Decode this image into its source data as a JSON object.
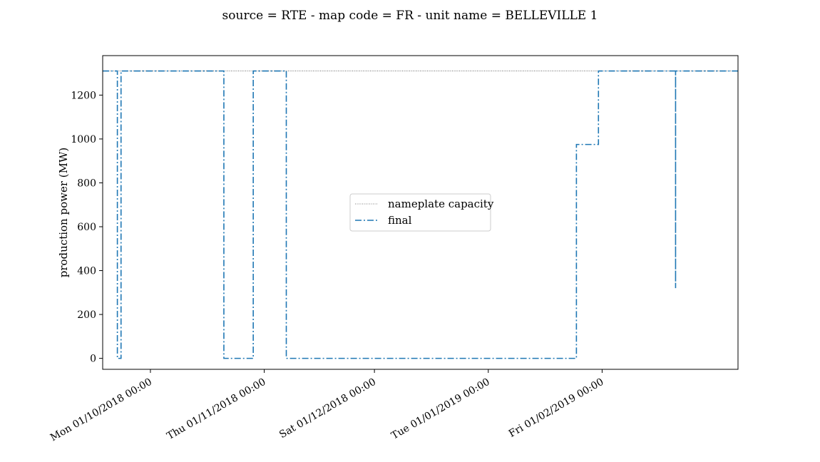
{
  "chart_data": {
    "type": "line",
    "title": "source = RTE - map code = FR - unit name = BELLEVILLE 1",
    "xlabel": "",
    "ylabel": "production power (MW)",
    "xlim": [
      "2018-09-18",
      "2019-03-10"
    ],
    "ylim": [
      -50,
      1380
    ],
    "x_ticks": [
      {
        "date": "2018-10-01",
        "label": "Mon 01/10/2018 00:00"
      },
      {
        "date": "2018-11-01",
        "label": "Thu 01/11/2018 00:00"
      },
      {
        "date": "2018-12-01",
        "label": "Sat 01/12/2018 00:00"
      },
      {
        "date": "2019-01-01",
        "label": "Tue 01/01/2019 00:00"
      },
      {
        "date": "2019-02-01",
        "label": "Fri 01/02/2019 00:00"
      }
    ],
    "y_ticks": [
      0,
      200,
      400,
      600,
      800,
      1000,
      1200
    ],
    "grid": false,
    "legend_position": "center",
    "series": [
      {
        "name": "nameplate capacity",
        "style": "dotted",
        "color": "#555555",
        "x": [
          "2018-09-18",
          "2019-03-10"
        ],
        "y": [
          1310,
          1310
        ]
      },
      {
        "name": "final",
        "style": "dashdot",
        "color": "#1f77b4",
        "x": [
          "2018-09-18",
          "2018-09-22",
          "2018-09-22",
          "2018-09-23",
          "2018-09-23",
          "2018-10-21",
          "2018-10-21",
          "2018-10-29",
          "2018-10-29",
          "2018-10-29",
          "2018-10-29",
          "2018-11-07",
          "2018-11-07",
          "2019-01-25",
          "2019-01-25",
          "2019-01-31",
          "2019-01-31",
          "2019-02-21",
          "2019-02-21",
          "2019-02-21",
          "2019-03-10"
        ],
        "y": [
          1310,
          1310,
          0,
          0,
          1310,
          1310,
          0,
          0,
          220,
          1310,
          1310,
          1310,
          0,
          0,
          975,
          975,
          1310,
          1310,
          320,
          1310,
          1310
        ]
      }
    ]
  }
}
